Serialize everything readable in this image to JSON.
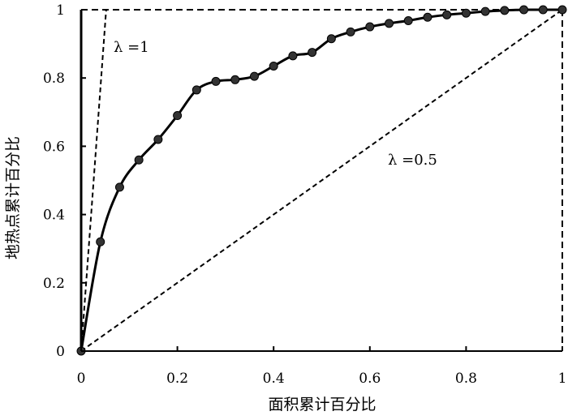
{
  "chart_data": {
    "type": "line",
    "title": "",
    "xlabel": "面积累计百分比",
    "ylabel": "地热点累计百分比",
    "xlim": [
      0,
      1
    ],
    "ylim": [
      0,
      1
    ],
    "x_ticks": [
      "0",
      "0.2",
      "0.4",
      "0.6",
      "0.8",
      "1"
    ],
    "y_ticks": [
      "0",
      "0.2",
      "0.4",
      "0.6",
      "0.8",
      "1"
    ],
    "grid": false,
    "legend": "none",
    "series": [
      {
        "x": [
          0,
          0.04,
          0.08,
          0.12,
          0.16,
          0.2,
          0.24,
          0.28,
          0.32,
          0.36,
          0.4,
          0.44,
          0.48,
          0.52,
          0.56,
          0.6,
          0.64,
          0.68,
          0.72,
          0.76,
          0.8,
          0.84,
          0.88,
          0.92,
          0.96,
          1
        ],
        "y": [
          0,
          0.32,
          0.48,
          0.56,
          0.62,
          0.69,
          0.765,
          0.79,
          0.795,
          0.805,
          0.835,
          0.865,
          0.875,
          0.915,
          0.935,
          0.95,
          0.96,
          0.968,
          0.978,
          0.985,
          0.99,
          0.995,
          0.998,
          1,
          1,
          1
        ]
      }
    ],
    "reference_lines": [
      {
        "label": "λ =1",
        "points": [
          [
            0,
            0
          ],
          [
            0.052,
            1
          ]
        ]
      },
      {
        "label": "λ =0.5",
        "points": [
          [
            0,
            0
          ],
          [
            1,
            1
          ]
        ]
      }
    ],
    "colors": {
      "line": "#000000",
      "background": "#ffffff"
    }
  }
}
